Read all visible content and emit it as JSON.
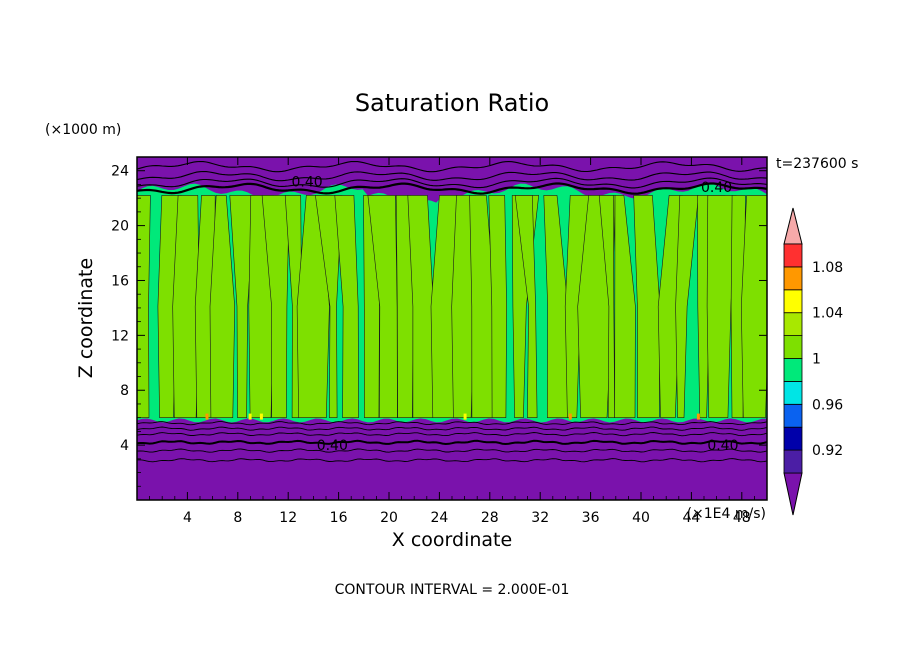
{
  "chart_data": {
    "type": "heatmap",
    "title": "Saturation Ratio",
    "xlabel": "X coordinate",
    "ylabel": "Z coordinate",
    "x_unit": "(×1E4 m/s)",
    "y_unit": "(×1000 m)",
    "time_label": "t=237600 s",
    "footer": "CONTOUR INTERVAL = 2.000E-01",
    "xlim": [
      0,
      50
    ],
    "ylim": [
      0,
      25
    ],
    "x_ticks": [
      4,
      8,
      12,
      16,
      20,
      24,
      28,
      32,
      36,
      40,
      44,
      48
    ],
    "y_ticks": [
      4,
      8,
      12,
      16,
      20,
      24
    ],
    "contour_labels": [
      {
        "text": "0.40",
        "x": 15.5,
        "y": 4.0
      },
      {
        "text": "0.40",
        "x": 46.5,
        "y": 4.0
      },
      {
        "text": "0.40",
        "x": 13.5,
        "y": 23.2
      },
      {
        "text": "0.40",
        "x": 46.0,
        "y": 22.8
      }
    ],
    "colorbar": {
      "labels": [
        "1.08",
        "1.04",
        "1",
        "0.96",
        "0.92"
      ],
      "label_values": [
        1.08,
        1.04,
        1.0,
        0.96,
        0.92
      ],
      "levels": [
        0.9,
        0.92,
        0.94,
        0.96,
        0.98,
        1.0,
        1.02,
        1.04,
        1.06,
        1.08,
        1.1
      ],
      "colors": [
        "#4b1ea5",
        "#0000aa",
        "#0a62f0",
        "#00e5e5",
        "#00e97a",
        "#7ee000",
        "#a8e800",
        "#ffff00",
        "#ff9800",
        "#ff3030"
      ],
      "under_color": "#7a12ac",
      "over_color": "#f6a9a9"
    },
    "regions": {
      "lower_dry_layer": {
        "z_range": [
          0,
          5.8
        ],
        "color": "#7a12ac"
      },
      "cloud_layer": {
        "z_range": [
          5.8,
          22.5
        ],
        "colors": [
          "#00e97a",
          "#7ee000"
        ]
      },
      "upper_dry_layer": {
        "z_range": [
          22.5,
          25
        ],
        "color": "#7a12ac"
      }
    }
  }
}
